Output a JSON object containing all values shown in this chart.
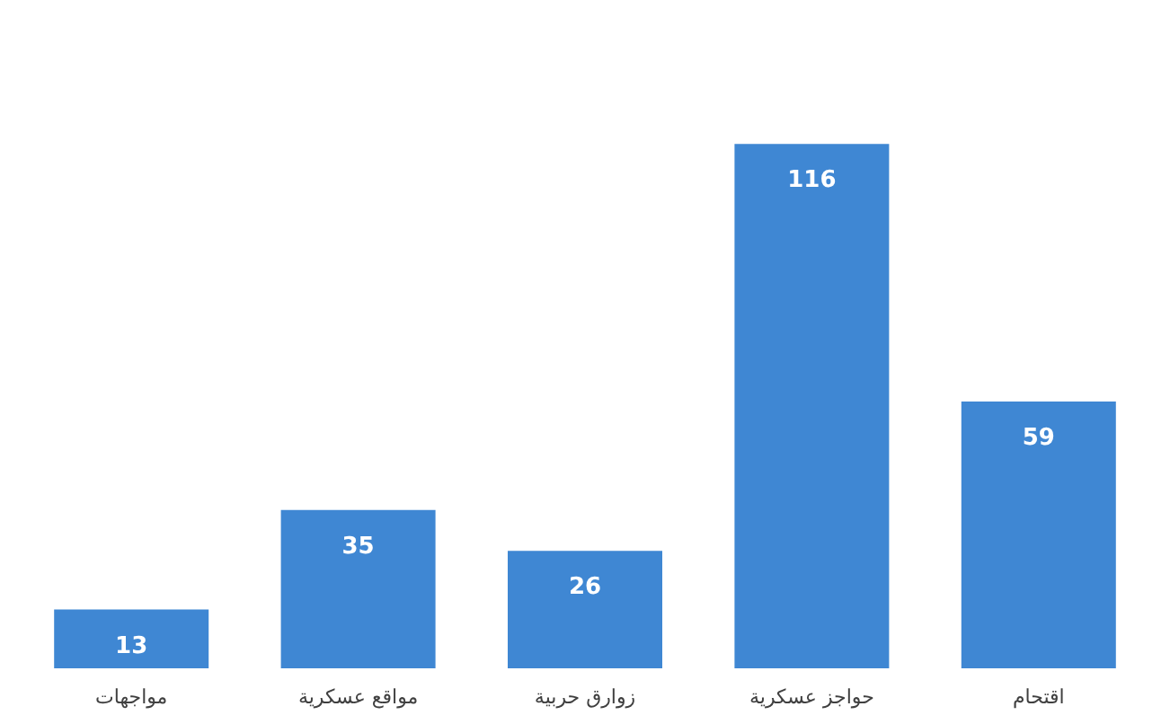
{
  "chart_data": {
    "type": "bar",
    "categories": [
      "مواجهات",
      "مواقع عسكرية",
      "زوارق حربية",
      "حواجز عسكرية",
      "اقتحام"
    ],
    "values": [
      13,
      35,
      26,
      116,
      59
    ],
    "color": "#3f87d3",
    "data_labels": true,
    "grid": false
  }
}
